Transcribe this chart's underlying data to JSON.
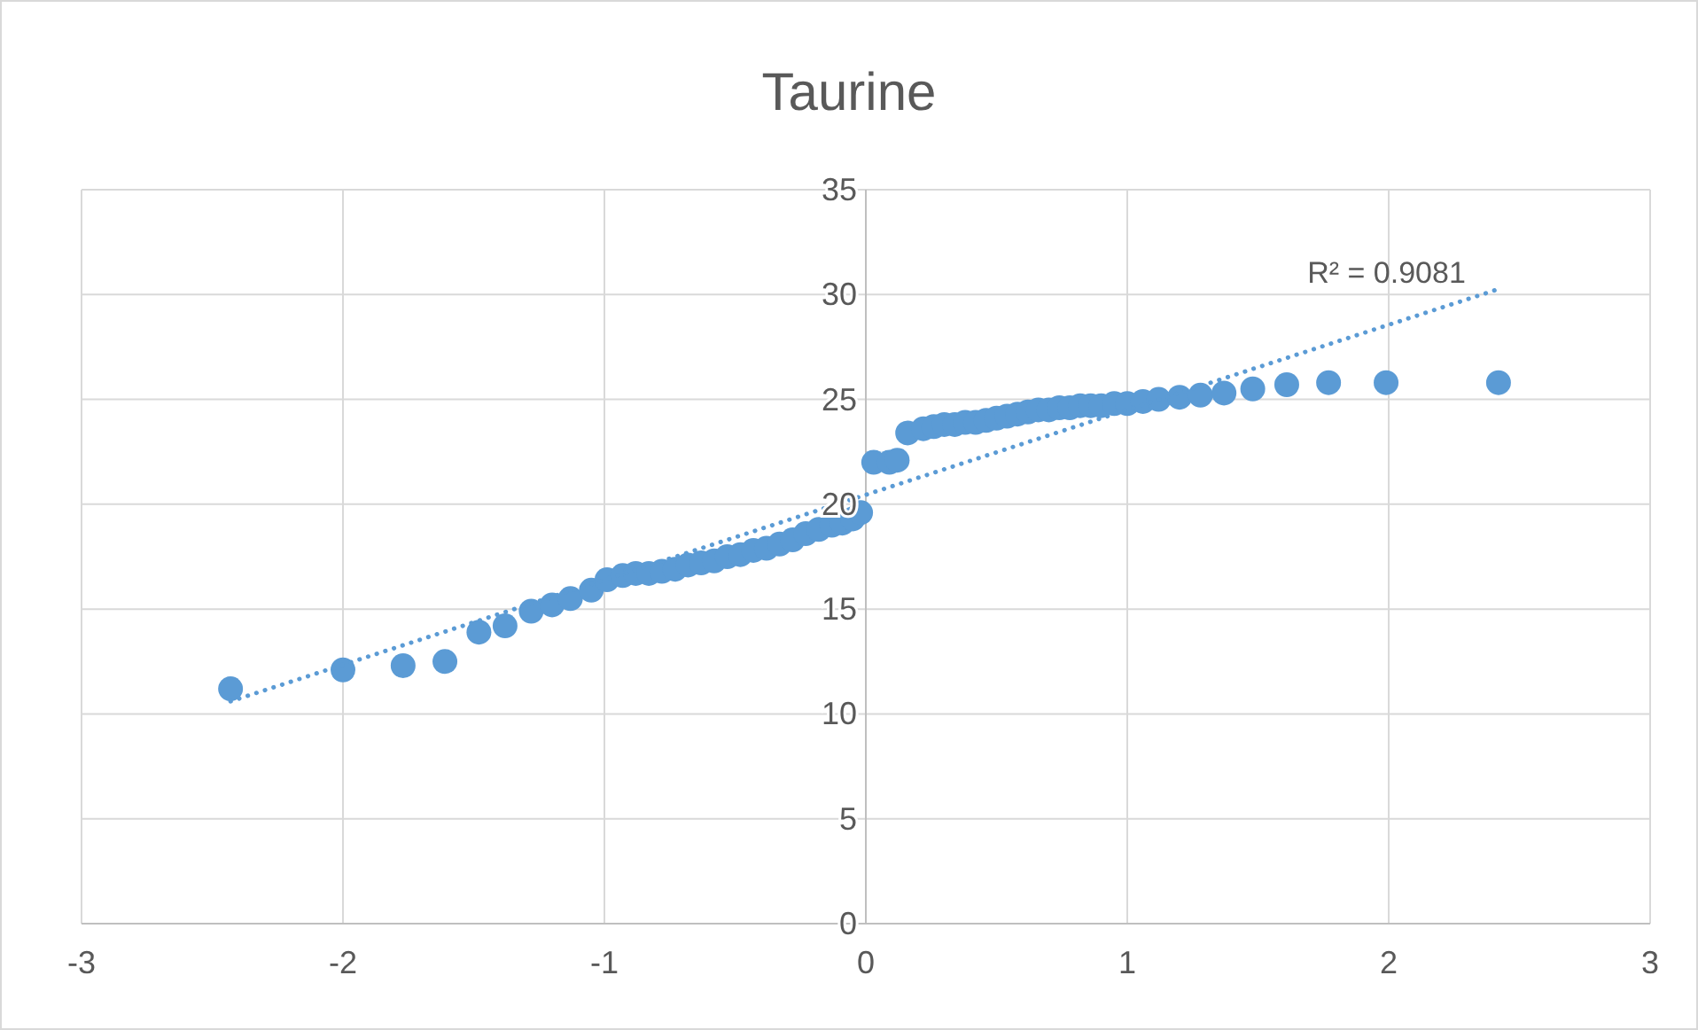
{
  "chart_data": {
    "type": "scatter",
    "title": "Taurine",
    "xlim": [
      -3,
      3
    ],
    "ylim": [
      0,
      35
    ],
    "xticks": [
      -3,
      -2,
      -1,
      0,
      1,
      2,
      3
    ],
    "yticks": [
      0,
      5,
      10,
      15,
      20,
      25,
      30,
      35
    ],
    "grid": true,
    "annotations": [
      "R² = 0.9081"
    ],
    "series": [
      {
        "color": "#5b9bd5",
        "marker": "circle",
        "x": [
          -2.43,
          -2.0,
          -1.77,
          -1.61,
          -1.48,
          -1.38,
          -1.28,
          -1.2,
          -1.13,
          -1.05,
          -0.99,
          -0.93,
          -0.88,
          -0.83,
          -0.78,
          -0.73,
          -0.68,
          -0.63,
          -0.58,
          -0.53,
          -0.48,
          -0.43,
          -0.38,
          -0.33,
          -0.28,
          -0.23,
          -0.18,
          -0.13,
          -0.09,
          -0.05,
          -0.02,
          0.03,
          0.09,
          0.12,
          0.16,
          0.22,
          0.26,
          0.3,
          0.34,
          0.38,
          0.42,
          0.46,
          0.5,
          0.54,
          0.58,
          0.62,
          0.66,
          0.7,
          0.74,
          0.78,
          0.82,
          0.86,
          0.9,
          0.95,
          1.0,
          1.06,
          1.12,
          1.2,
          1.28,
          1.37,
          1.48,
          1.61,
          1.77,
          1.99,
          2.42
        ],
        "values": [
          11.2,
          12.1,
          12.3,
          12.5,
          13.9,
          14.2,
          14.9,
          15.2,
          15.5,
          15.9,
          16.4,
          16.6,
          16.7,
          16.7,
          16.8,
          16.9,
          17.1,
          17.2,
          17.3,
          17.5,
          17.6,
          17.8,
          17.9,
          18.1,
          18.3,
          18.6,
          18.8,
          19.0,
          19.1,
          19.3,
          19.6,
          22.0,
          22.0,
          22.1,
          23.4,
          23.6,
          23.7,
          23.8,
          23.8,
          23.9,
          23.9,
          24.0,
          24.1,
          24.2,
          24.3,
          24.4,
          24.5,
          24.5,
          24.6,
          24.6,
          24.7,
          24.7,
          24.7,
          24.8,
          24.8,
          24.9,
          25.0,
          25.1,
          25.2,
          25.3,
          25.5,
          25.7,
          25.8,
          25.8,
          25.8
        ]
      },
      {
        "type": "line",
        "color": "#5b9bd5",
        "line_style": "dotted",
        "x": [
          -2.43,
          2.43
        ],
        "values": [
          10.6,
          30.3
        ]
      }
    ]
  }
}
